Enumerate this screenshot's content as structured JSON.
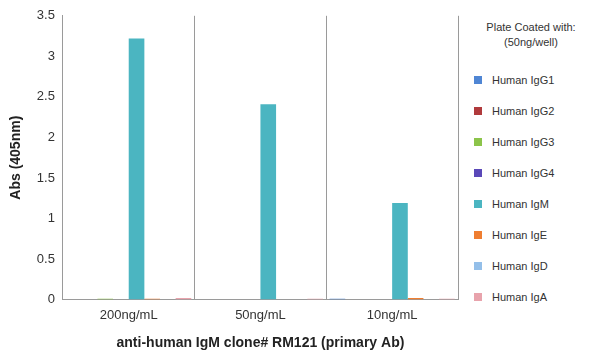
{
  "chart_data": {
    "type": "bar",
    "x_label": "anti-human IgM clone# RM121 (primary Ab)",
    "y_label": "Abs (405nm)",
    "legend_title": [
      "Plate Coated with:",
      "(50ng/well)"
    ],
    "legend": "right",
    "grid": "x",
    "categories": [
      "200ng/mL",
      "50ng/mL",
      "10ng/mL"
    ],
    "series": [
      {
        "name": "Human IgG1",
        "color": "#4f86d4",
        "values": [
          0,
          0,
          0.01
        ]
      },
      {
        "name": "Human IgG2",
        "color": "#b03a3c",
        "values": [
          0,
          0,
          0
        ]
      },
      {
        "name": "Human IgG3",
        "color": "#8cc44a",
        "values": [
          0.01,
          0,
          0
        ]
      },
      {
        "name": "Human IgG4",
        "color": "#5a48b8",
        "values": [
          0,
          0,
          0
        ]
      },
      {
        "name": "Human IgM",
        "color": "#4bb5c1",
        "values": [
          3.22,
          2.41,
          1.19
        ]
      },
      {
        "name": "Human IgE",
        "color": "#ef7e31",
        "values": [
          0.01,
          0,
          0.02
        ]
      },
      {
        "name": "Human IgD",
        "color": "#94bfe9",
        "values": [
          0,
          0,
          0
        ]
      },
      {
        "name": "Human IgA",
        "color": "#e8a3ac",
        "values": [
          0.02,
          0.01,
          0.01
        ]
      }
    ],
    "ylim": [
      0,
      3.5
    ],
    "yticks": [
      0,
      0.5,
      1,
      1.5,
      2,
      2.5,
      3,
      3.5
    ]
  }
}
